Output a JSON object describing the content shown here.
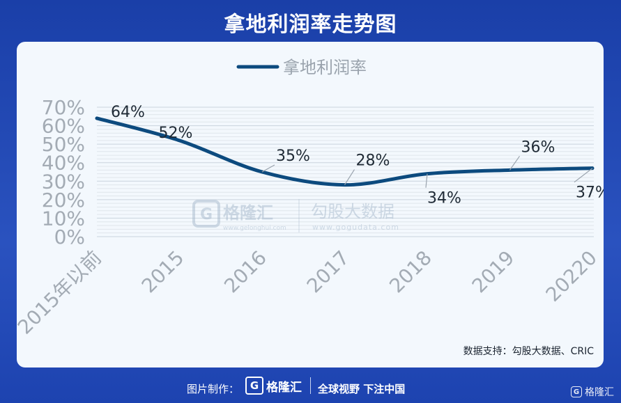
{
  "header": {
    "title": "拿地利润率走势图"
  },
  "chart_data": {
    "type": "line",
    "legend_position": "top",
    "grid": true,
    "categories": [
      "2015年以前",
      "2015",
      "2016",
      "2017",
      "2018",
      "2019",
      "20220"
    ],
    "series": [
      {
        "name": "拿地利润率",
        "values": [
          64,
          52,
          35,
          28,
          34,
          36,
          37
        ],
        "color": "#0c4a7e"
      }
    ],
    "point_labels": [
      "64%",
      "52%",
      "35%",
      "28%",
      "34%",
      "36%",
      "37%"
    ],
    "y_ticks": [
      "0%",
      "10%",
      "20%",
      "30%",
      "40%",
      "50%",
      "60%",
      "70%"
    ],
    "ylim": [
      0,
      70
    ]
  },
  "watermark": {
    "brand_left": "格隆汇",
    "brand_left_url": "www.gelonghui.com",
    "brand_right": "勾股大数据",
    "brand_right_url": "www.gogudata.com"
  },
  "source": "数据支持：勾股大数据、CRIC",
  "footer": {
    "made_by": "图片制作：",
    "logo_mark": "G",
    "logo_text": "格隆汇",
    "slogan": "全球视野 下注中国"
  },
  "corner_logo": {
    "mark": "G",
    "text": "格隆汇"
  }
}
